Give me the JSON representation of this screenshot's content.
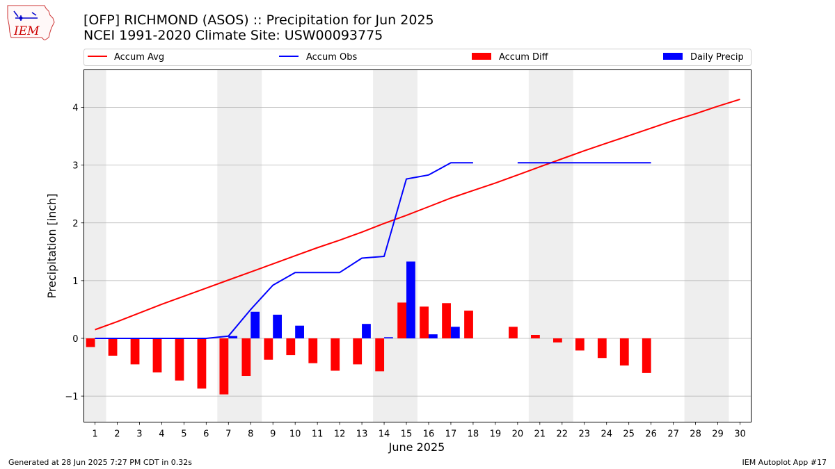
{
  "header": {
    "title": "[OFP] RICHMOND (ASOS) :: Precipitation for Jun 2025",
    "subtitle": "NCEI 1991-2020 Climate Site: USW00093775",
    "logo_text": "IEM"
  },
  "footer": {
    "left": "Generated at 28 Jun 2025 7:27 PM CDT in 0.32s",
    "right": "IEM Autoplot App #17"
  },
  "colors": {
    "avg": "#ff0000",
    "obs": "#0000ff",
    "diff": "#ff0000",
    "daily": "#0000ff",
    "weekend_shade": "#eeeeee",
    "grid": "#b0b0b0"
  },
  "chart_data": {
    "type": "bar",
    "xlabel": "June 2025",
    "ylabel": "Precipitation [inch]",
    "xlim": [
      0.5,
      30.5
    ],
    "ylim": [
      -1.45,
      4.65
    ],
    "yticks": [
      -1,
      0,
      1,
      2,
      3,
      4
    ],
    "ytick_labels": [
      "−1",
      "0",
      "1",
      "2",
      "3",
      "4"
    ],
    "x": [
      1,
      2,
      3,
      4,
      5,
      6,
      7,
      8,
      9,
      10,
      11,
      12,
      13,
      14,
      15,
      16,
      17,
      18,
      19,
      20,
      21,
      22,
      23,
      24,
      25,
      26,
      27,
      28,
      29,
      30
    ],
    "grid": "horizontal",
    "legend_position": "top",
    "legend": [
      "Accum Avg",
      "Accum Obs",
      "Accum Diff",
      "Daily Precip"
    ],
    "shaded_days": [
      [
        0.5,
        1.5
      ],
      [
        6.5,
        8.5
      ],
      [
        13.5,
        15.5
      ],
      [
        20.5,
        22.5
      ],
      [
        27.5,
        29.5
      ]
    ],
    "series": [
      {
        "name": "Accum Avg",
        "kind": "line",
        "values": [
          0.15,
          0.29,
          0.44,
          0.59,
          0.73,
          0.87,
          1.01,
          1.15,
          1.29,
          1.43,
          1.57,
          1.7,
          1.84,
          1.99,
          2.13,
          2.28,
          2.43,
          2.56,
          2.69,
          2.83,
          2.97,
          3.11,
          3.25,
          3.38,
          3.51,
          3.64,
          3.77,
          3.89,
          4.02,
          4.14
        ]
      },
      {
        "name": "Accum Obs",
        "kind": "line",
        "values": [
          0,
          0,
          0,
          0,
          0,
          0,
          0.04,
          0.5,
          0.92,
          1.14,
          1.14,
          1.14,
          1.39,
          1.42,
          2.76,
          2.83,
          3.04,
          3.04,
          null,
          3.04,
          3.04,
          3.04,
          3.04,
          3.04,
          3.04,
          3.04,
          null,
          null,
          null,
          null
        ]
      },
      {
        "name": "Accum Diff",
        "kind": "bar",
        "values": [
          -0.15,
          -0.3,
          -0.45,
          -0.59,
          -0.73,
          -0.87,
          -0.97,
          -0.65,
          -0.37,
          -0.29,
          -0.43,
          -0.56,
          -0.45,
          -0.57,
          0.62,
          0.55,
          0.61,
          0.48,
          null,
          0.2,
          0.06,
          -0.07,
          -0.21,
          -0.34,
          -0.47,
          -0.6,
          null,
          null,
          null,
          null
        ]
      },
      {
        "name": "Daily Precip",
        "kind": "bar",
        "values": [
          0,
          0,
          0,
          0,
          0,
          0,
          0.04,
          0.46,
          0.41,
          0.22,
          0,
          0,
          0.25,
          0.02,
          1.33,
          0.07,
          0.2,
          0,
          null,
          0,
          0,
          0,
          0,
          0,
          0,
          0,
          null,
          null,
          null,
          null
        ]
      }
    ]
  }
}
